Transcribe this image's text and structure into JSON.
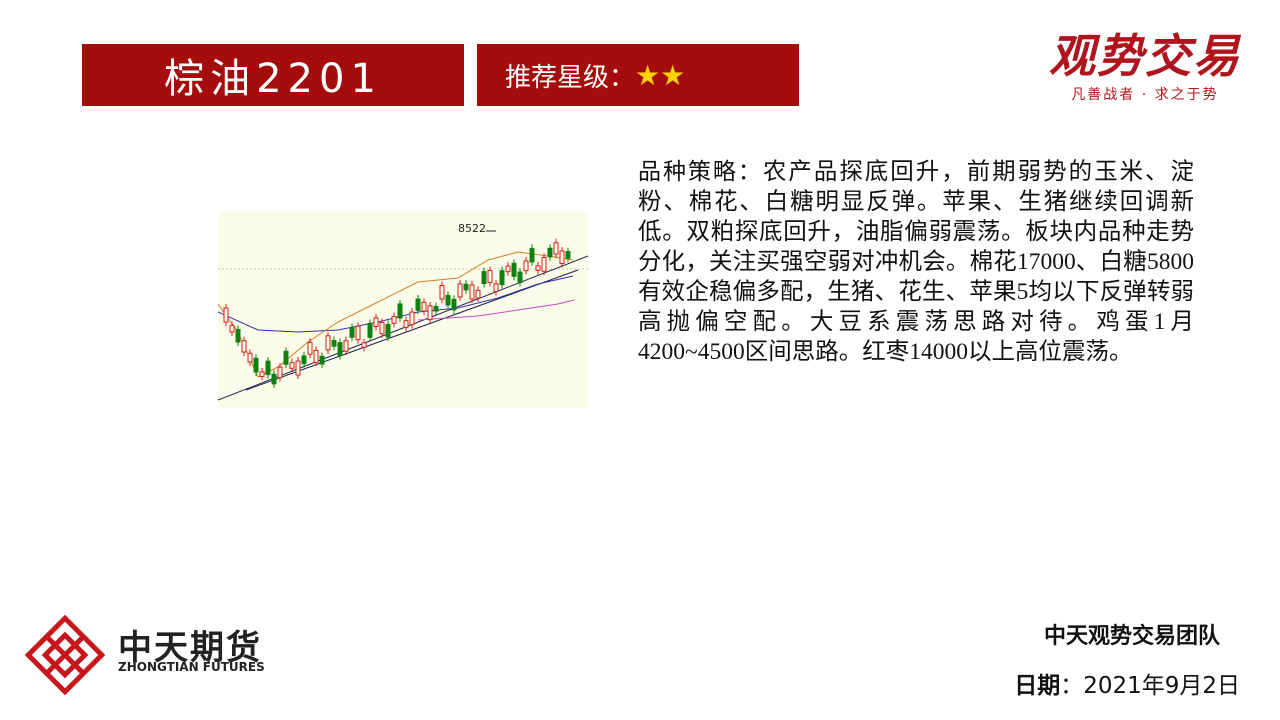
{
  "header": {
    "title": "棕油2201",
    "rating_label": "推荐星级：",
    "rating": "★★"
  },
  "brand": {
    "logo_text": "观势交易",
    "slogan": "凡善战者 · 求之于势"
  },
  "chart_image": {
    "label": "8522"
  },
  "strategy": {
    "label": "品种策略：",
    "text": "农产品探底回升，前期弱势的玉米、淀粉、棉花、白糖明显反弹。苹果、生猪继续回调新低。双粕探底回升，油脂偏弱震荡。板块内品种走势分化，关注买强空弱对冲机会。棉花17000、白糖5800有效企稳偏多配，生猪、花生、苹果5均以下反弹转弱高抛偏空配。大豆系震荡思路对待。鸡蛋1月4200~4500区间思路。红枣14000以上高位震荡。"
  },
  "footer": {
    "company_cn": "中天期货",
    "company_en": "ZHONGTIAN FUTURES",
    "team": "中天观势交易团队",
    "date_label": "日期",
    "date": "：2021年9月2日"
  }
}
